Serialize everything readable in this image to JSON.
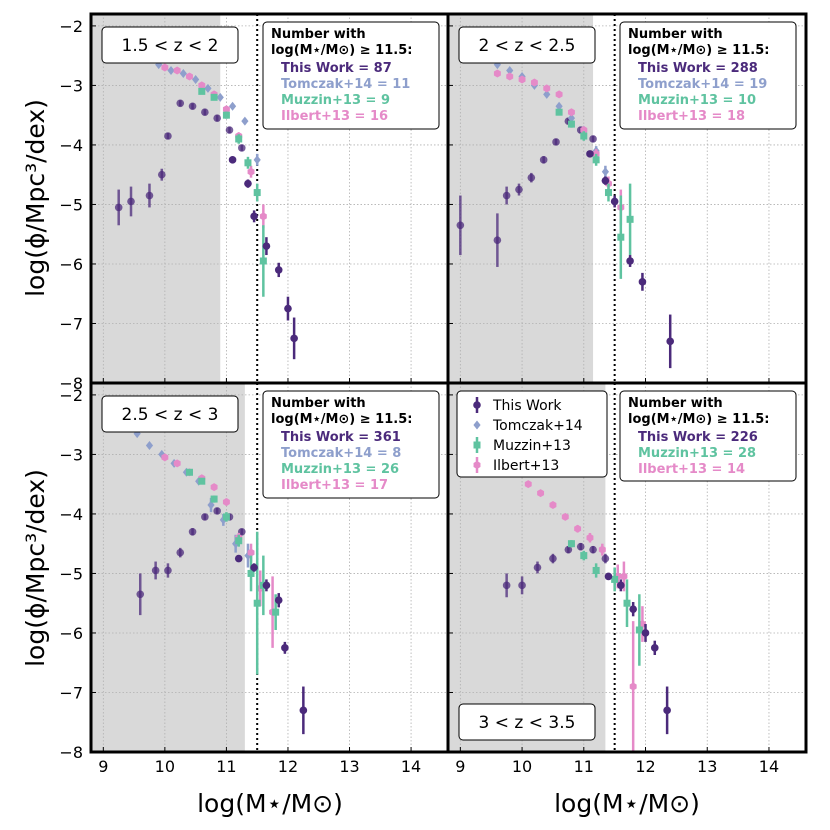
{
  "chart_data": {
    "type": "scatter",
    "xlabel": "log(M⋆/M⊙)",
    "ylabel": "log(ϕ/Mpc³/dex)",
    "xlim": [
      8.8,
      14.6
    ],
    "ylim": [
      -8,
      -1.8
    ],
    "xticks": [
      "9",
      "10",
      "11",
      "12",
      "13",
      "14"
    ],
    "yticks": [
      "−2",
      "−3",
      "−4",
      "−5",
      "−6",
      "−7",
      "−8"
    ],
    "threshold_x": 11.5,
    "colors": {
      "this_work": "#4b2a7b",
      "tomczak": "#8e9fcc",
      "muzzin": "#5fc3a0",
      "ilbert": "#e58ac8",
      "shade": "#d9d9d9"
    },
    "legend": {
      "entries": [
        "This Work",
        "Tomczak+14",
        "Muzzin+13",
        "Ilbert+13"
      ]
    },
    "counts_header": [
      "Number with",
      "log(M⋆/M⊙) ≥ 11.5:"
    ],
    "panels": [
      {
        "label": "1.5 < z < 2",
        "shade_max": 10.9,
        "counts": [
          {
            "series": "this_work",
            "text": "This Work = 87"
          },
          {
            "series": "tomczak",
            "text": "Tomczak+14 = 11"
          },
          {
            "series": "muzzin",
            "text": "Muzzin+13 = 9"
          },
          {
            "series": "ilbert",
            "text": "Ilbert+13 = 16"
          }
        ],
        "series": {
          "this_work_faded": [
            [
              9.25,
              -5.05,
              0.3
            ],
            [
              9.45,
              -4.95,
              0.25
            ],
            [
              9.75,
              -4.85,
              0.2
            ],
            [
              9.95,
              -4.5,
              0.1
            ],
            [
              10.05,
              -3.85,
              0.05
            ],
            [
              10.25,
              -3.3,
              0.05
            ],
            [
              10.45,
              -3.35,
              0.05
            ],
            [
              10.65,
              -3.45,
              0.05
            ],
            [
              10.85,
              -3.55,
              0.05
            ],
            [
              11.05,
              -3.75,
              0.05
            ],
            [
              11.25,
              -4.05,
              0.05
            ]
          ],
          "this_work": [
            [
              11.1,
              -4.25,
              0.05
            ],
            [
              11.35,
              -4.65,
              0.07
            ],
            [
              11.45,
              -5.2,
              0.1
            ],
            [
              11.65,
              -5.7,
              0.15
            ],
            [
              11.85,
              -6.1,
              0.12
            ],
            [
              12.0,
              -6.75,
              0.2
            ],
            [
              12.1,
              -7.25,
              0.35
            ]
          ],
          "tomczak": [
            [
              9.9,
              -2.65,
              0.03
            ],
            [
              10.1,
              -2.75,
              0.03
            ],
            [
              10.3,
              -2.8,
              0.03
            ],
            [
              10.5,
              -2.9,
              0.03
            ],
            [
              10.7,
              -3.05,
              0.03
            ],
            [
              10.9,
              -3.2,
              0.03
            ],
            [
              11.1,
              -3.35,
              0.04
            ],
            [
              11.3,
              -3.6,
              0.05
            ],
            [
              11.5,
              -4.25,
              0.1
            ]
          ],
          "muzzin": [
            [
              10.6,
              -3.1,
              0.05
            ],
            [
              10.8,
              -3.2,
              0.05
            ],
            [
              11.0,
              -3.5,
              0.06
            ],
            [
              11.2,
              -3.9,
              0.08
            ],
            [
              11.35,
              -4.3,
              0.1
            ],
            [
              11.5,
              -4.8,
              0.15
            ],
            [
              11.6,
              -5.95,
              0.6
            ]
          ],
          "ilbert": [
            [
              9.8,
              -2.55,
              0.03
            ],
            [
              10.0,
              -2.7,
              0.03
            ],
            [
              10.2,
              -2.75,
              0.03
            ],
            [
              10.4,
              -2.85,
              0.03
            ],
            [
              10.6,
              -3.0,
              0.03
            ],
            [
              10.8,
              -3.15,
              0.04
            ],
            [
              11.0,
              -3.4,
              0.05
            ],
            [
              11.2,
              -3.85,
              0.06
            ],
            [
              11.4,
              -4.45,
              0.1
            ],
            [
              11.6,
              -5.2,
              0.2
            ]
          ]
        }
      },
      {
        "label": "2 < z < 2.5",
        "shade_max": 11.15,
        "counts": [
          {
            "series": "this_work",
            "text": "This Work = 288"
          },
          {
            "series": "tomczak",
            "text": "Tomczak+14 = 19"
          },
          {
            "series": "muzzin",
            "text": "Muzzin+13 = 10"
          },
          {
            "series": "ilbert",
            "text": "Ilbert+13 = 18"
          }
        ],
        "series": {
          "this_work_faded": [
            [
              9.0,
              -5.35,
              0.5
            ],
            [
              9.6,
              -5.6,
              0.45
            ],
            [
              9.75,
              -4.85,
              0.15
            ],
            [
              9.95,
              -4.75,
              0.1
            ],
            [
              10.15,
              -4.55,
              0.08
            ],
            [
              10.35,
              -4.25,
              0.06
            ],
            [
              10.55,
              -3.95,
              0.05
            ],
            [
              10.75,
              -3.6,
              0.05
            ],
            [
              10.95,
              -3.75,
              0.05
            ],
            [
              11.15,
              -3.9,
              0.05
            ]
          ],
          "this_work": [
            [
              11.1,
              -4.15,
              0.05
            ],
            [
              11.35,
              -4.6,
              0.07
            ],
            [
              11.5,
              -4.95,
              0.1
            ],
            [
              11.75,
              -5.95,
              0.1
            ],
            [
              11.95,
              -6.3,
              0.15
            ],
            [
              12.4,
              -7.3,
              0.45
            ]
          ],
          "tomczak": [
            [
              9.2,
              -2.5,
              0.03
            ],
            [
              9.4,
              -2.55,
              0.03
            ],
            [
              9.6,
              -2.65,
              0.03
            ],
            [
              9.8,
              -2.75,
              0.03
            ],
            [
              10.0,
              -2.85,
              0.03
            ],
            [
              10.2,
              -3.0,
              0.03
            ],
            [
              10.4,
              -3.15,
              0.03
            ],
            [
              10.6,
              -3.35,
              0.04
            ],
            [
              10.8,
              -3.55,
              0.05
            ],
            [
              11.0,
              -3.75,
              0.06
            ],
            [
              11.2,
              -4.1,
              0.08
            ],
            [
              11.35,
              -4.45,
              0.1
            ]
          ],
          "muzzin": [
            [
              10.6,
              -3.45,
              0.05
            ],
            [
              10.8,
              -3.65,
              0.06
            ],
            [
              11.0,
              -3.85,
              0.08
            ],
            [
              11.2,
              -4.25,
              0.1
            ],
            [
              11.4,
              -4.8,
              0.15
            ],
            [
              11.6,
              -5.55,
              0.7
            ],
            [
              11.75,
              -5.25,
              0.6
            ]
          ],
          "ilbert": [
            [
              9.6,
              -2.8,
              0.03
            ],
            [
              9.8,
              -2.85,
              0.03
            ],
            [
              10.0,
              -2.9,
              0.03
            ],
            [
              10.2,
              -2.95,
              0.03
            ],
            [
              10.4,
              -3.05,
              0.03
            ],
            [
              10.6,
              -3.15,
              0.04
            ],
            [
              10.8,
              -3.45,
              0.05
            ],
            [
              11.0,
              -3.75,
              0.06
            ],
            [
              11.2,
              -4.15,
              0.08
            ],
            [
              11.4,
              -4.65,
              0.12
            ],
            [
              11.6,
              -5.05,
              0.3
            ]
          ]
        }
      },
      {
        "label": "2.5 < z < 3",
        "shade_max": 11.3,
        "counts": [
          {
            "series": "this_work",
            "text": "This Work = 361"
          },
          {
            "series": "tomczak",
            "text": "Tomczak+14 = 8"
          },
          {
            "series": "muzzin",
            "text": "Muzzin+13 = 26"
          },
          {
            "series": "ilbert",
            "text": "Ilbert+13 = 17"
          }
        ],
        "series": {
          "this_work_faded": [
            [
              9.6,
              -5.35,
              0.35
            ],
            [
              9.85,
              -4.95,
              0.15
            ],
            [
              10.05,
              -4.95,
              0.12
            ],
            [
              10.25,
              -4.65,
              0.08
            ],
            [
              10.45,
              -4.3,
              0.06
            ],
            [
              10.65,
              -4.05,
              0.05
            ],
            [
              10.85,
              -3.95,
              0.05
            ],
            [
              11.05,
              -4.05,
              0.05
            ],
            [
              11.25,
              -4.3,
              0.05
            ]
          ],
          "this_work": [
            [
              11.2,
              -4.75,
              0.05
            ],
            [
              11.45,
              -4.9,
              0.07
            ],
            [
              11.65,
              -5.2,
              0.1
            ],
            [
              11.85,
              -5.45,
              0.12
            ],
            [
              11.95,
              -6.25,
              0.1
            ],
            [
              12.25,
              -7.3,
              0.4
            ]
          ],
          "tomczak": [
            [
              9.55,
              -2.65,
              0.03
            ],
            [
              9.75,
              -2.85,
              0.03
            ],
            [
              9.95,
              -3.0,
              0.03
            ],
            [
              10.15,
              -3.15,
              0.03
            ],
            [
              10.35,
              -3.3,
              0.04
            ],
            [
              10.55,
              -3.45,
              0.04
            ],
            [
              10.75,
              -3.85,
              0.12
            ],
            [
              10.95,
              -4.1,
              0.1
            ],
            [
              11.15,
              -4.5,
              0.15
            ],
            [
              11.35,
              -4.7,
              0.2
            ]
          ],
          "muzzin": [
            [
              10.4,
              -3.3,
              0.05
            ],
            [
              10.6,
              -3.45,
              0.05
            ],
            [
              10.8,
              -3.75,
              0.06
            ],
            [
              11.0,
              -4.05,
              0.08
            ],
            [
              11.2,
              -4.45,
              0.1
            ],
            [
              11.4,
              -5.0,
              0.3
            ],
            [
              11.5,
              -5.5,
              1.2
            ],
            [
              11.6,
              -5.2,
              0.5
            ],
            [
              11.8,
              -5.65,
              0.3
            ]
          ],
          "ilbert": [
            [
              10.0,
              -3.05,
              0.03
            ],
            [
              10.2,
              -3.15,
              0.03
            ],
            [
              10.4,
              -3.3,
              0.03
            ],
            [
              10.6,
              -3.4,
              0.04
            ],
            [
              10.8,
              -3.55,
              0.05
            ],
            [
              11.0,
              -3.8,
              0.06
            ],
            [
              11.2,
              -4.4,
              0.08
            ],
            [
              11.4,
              -4.65,
              0.15
            ],
            [
              11.55,
              -5.25,
              0.3
            ],
            [
              11.75,
              -5.65,
              0.6
            ]
          ]
        }
      },
      {
        "label": "3 < z < 3.5",
        "shade_max": 11.35,
        "counts": [
          {
            "series": "this_work",
            "text": "This Work = 226"
          },
          {
            "series": "muzzin",
            "text": "Muzzin+13 = 28"
          },
          {
            "series": "ilbert",
            "text": "Ilbert+13 = 14"
          }
        ],
        "series": {
          "this_work_faded": [
            [
              9.75,
              -5.2,
              0.2
            ],
            [
              10.0,
              -5.2,
              0.15
            ],
            [
              10.25,
              -4.9,
              0.1
            ],
            [
              10.5,
              -4.75,
              0.08
            ],
            [
              10.75,
              -4.6,
              0.06
            ],
            [
              10.95,
              -4.55,
              0.06
            ],
            [
              11.15,
              -4.6,
              0.06
            ],
            [
              11.35,
              -4.75,
              0.08
            ]
          ],
          "this_work": [
            [
              11.4,
              -5.05,
              0.06
            ],
            [
              11.6,
              -5.2,
              0.1
            ],
            [
              11.8,
              -5.6,
              0.12
            ],
            [
              12.0,
              -6.0,
              0.15
            ],
            [
              12.15,
              -6.25,
              0.12
            ],
            [
              12.35,
              -7.3,
              0.4
            ]
          ],
          "tomczak": [],
          "muzzin": [
            [
              10.8,
              -4.5,
              0.06
            ],
            [
              11.0,
              -4.7,
              0.08
            ],
            [
              11.2,
              -4.95,
              0.12
            ],
            [
              11.5,
              -5.1,
              0.2
            ],
            [
              11.7,
              -5.5,
              0.4
            ],
            [
              11.9,
              -5.95,
              0.6
            ]
          ],
          "ilbert": [
            [
              9.9,
              -3.3,
              0.03
            ],
            [
              10.1,
              -3.5,
              0.03
            ],
            [
              10.3,
              -3.65,
              0.03
            ],
            [
              10.5,
              -3.85,
              0.04
            ],
            [
              10.7,
              -4.05,
              0.05
            ],
            [
              10.9,
              -4.25,
              0.06
            ],
            [
              11.1,
              -4.4,
              0.08
            ],
            [
              11.3,
              -4.6,
              0.1
            ],
            [
              11.55,
              -5.05,
              0.2
            ],
            [
              11.65,
              -5.05,
              0.25
            ],
            [
              11.8,
              -6.9,
              1.1
            ],
            [
              11.95,
              -5.85,
              0.3
            ]
          ]
        }
      }
    ]
  }
}
